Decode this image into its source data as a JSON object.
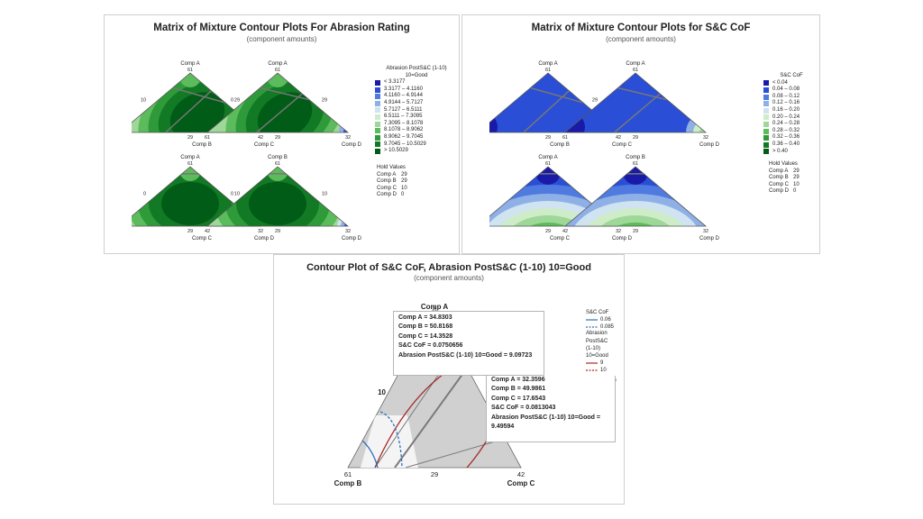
{
  "panel1": {
    "title": "Matrix of Mixture Contour Plots For Abrasion Rating",
    "subtitle": "(component amounts)",
    "legend_title": "Abrasion PostS&C (1-10)",
    "legend_subtitle": "10=Good",
    "legend_items": [
      {
        "range": "<     3.3177",
        "color": "#1a1aa8"
      },
      {
        "range": "3.3177  –   4.1160",
        "color": "#2a4fd6"
      },
      {
        "range": "4.1160  –   4.9144",
        "color": "#4f7be0"
      },
      {
        "range": "4.9144  –   5.7127",
        "color": "#8fb0e6"
      },
      {
        "range": "5.7127  –   6.5111",
        "color": "#cfe3f1"
      },
      {
        "range": "6.5111  –   7.3095",
        "color": "#cfecc9"
      },
      {
        "range": "7.3095  –   8.1078",
        "color": "#9ed898"
      },
      {
        "range": "8.1078  –   8.9062",
        "color": "#5cbb5c"
      },
      {
        "range": "8.9062  –   9.7045",
        "color": "#2f9a3a"
      },
      {
        "range": "9.7045  –  10.5029",
        "color": "#127a24"
      },
      {
        "range": ">   10.5029",
        "color": "#005c17"
      }
    ],
    "hold_title": "Hold Values",
    "hold": [
      {
        "name": "Comp A",
        "value": "29"
      },
      {
        "name": "Comp B",
        "value": "29"
      },
      {
        "name": "Comp C",
        "value": "10"
      },
      {
        "name": "Comp D",
        "value": "0"
      }
    ],
    "plots": [
      {
        "top": "Comp A",
        "top_val": "61",
        "left_val": "10",
        "right_val": "29",
        "bl_val": "61",
        "bm_val": "29",
        "br_val": "42",
        "bl_name": "Comp B",
        "br_name": "Comp C"
      },
      {
        "top": "Comp A",
        "top_val": "61",
        "left_val": "0",
        "right_val": "29",
        "bl_val": "61",
        "bm_val": "29",
        "br_val": "32",
        "bl_name": "Comp B",
        "br_name": "Comp D"
      },
      {
        "top": "Comp A",
        "top_val": "61",
        "left_val": "0",
        "right_val": "10",
        "bl_val": "42",
        "bm_val": "29",
        "br_val": "32",
        "bl_name": "Comp C",
        "br_name": "Comp D"
      },
      {
        "top": "Comp B",
        "top_val": "61",
        "left_val": "0",
        "right_val": "10",
        "bl_val": "42",
        "bm_val": "29",
        "br_val": "32",
        "bl_name": "Comp C",
        "br_name": "Comp D"
      }
    ]
  },
  "panel2": {
    "title": "Matrix of Mixture Contour Plots for S&C CoF",
    "subtitle": "(component amounts)",
    "legend_title": "S&C CoF",
    "legend_items": [
      {
        "range": "<    0.04",
        "color": "#1a1aa8"
      },
      {
        "range": "0.04  –  0.08",
        "color": "#2a4fd6"
      },
      {
        "range": "0.08  –  0.12",
        "color": "#4f7be0"
      },
      {
        "range": "0.12  –  0.16",
        "color": "#8fb0e6"
      },
      {
        "range": "0.16  –  0.20",
        "color": "#cfe3f1"
      },
      {
        "range": "0.20  –  0.24",
        "color": "#cfecc9"
      },
      {
        "range": "0.24  –  0.28",
        "color": "#9ed898"
      },
      {
        "range": "0.28  –  0.32",
        "color": "#5cbb5c"
      },
      {
        "range": "0.32  –  0.36",
        "color": "#2f9a3a"
      },
      {
        "range": "0.36  –  0.40",
        "color": "#127a24"
      },
      {
        "range": ">    0.40",
        "color": "#005c17"
      }
    ],
    "hold_title": "Hold Values",
    "hold": [
      {
        "name": "Comp A",
        "value": "29"
      },
      {
        "name": "Comp B",
        "value": "29"
      },
      {
        "name": "Comp C",
        "value": "10"
      },
      {
        "name": "Comp D",
        "value": "0"
      }
    ],
    "plots": [
      {
        "top": "Comp A",
        "top_val": "61",
        "left_val": "",
        "right_val": "29",
        "bl_val": "61",
        "bm_val": "29",
        "br_val": "42",
        "bl_name": "Comp B",
        "br_name": "Comp C"
      },
      {
        "top": "Comp A",
        "top_val": "61",
        "left_val": "",
        "right_val": "",
        "bl_val": "61",
        "bm_val": "29",
        "br_val": "32",
        "bl_name": "Comp B",
        "br_name": "Comp D"
      },
      {
        "top": "Comp A",
        "top_val": "61",
        "left_val": "",
        "right_val": "",
        "bl_val": "42",
        "bm_val": "29",
        "br_val": "32",
        "bl_name": "Comp C",
        "br_name": "Comp D"
      },
      {
        "top": "Comp B",
        "top_val": "61",
        "left_val": "",
        "right_val": "",
        "bl_val": "42",
        "bm_val": "29",
        "br_val": "32",
        "bl_name": "Comp C",
        "br_name": "Comp D"
      }
    ]
  },
  "panel3": {
    "title": "Contour Plot of S&C CoF, Abrasion PostS&C (1-10) 10=Good",
    "subtitle": "(component amounts)",
    "top_label": "Comp A",
    "top_val": "29",
    "left_val": "10",
    "bl_val": "61",
    "bl_name": "Comp B",
    "bm_val": "29",
    "br_val": "42",
    "br_name": "Comp C",
    "legend": {
      "cof_title": "S&C CoF",
      "cof_items": [
        "0.06",
        "0.085"
      ],
      "abr_title": [
        "Abrasion",
        "PostS&C",
        "(1-10)",
        "10=Good"
      ],
      "abr_items": [
        "9",
        "10"
      ],
      "hold_partial": "Values",
      "hold_partial2": "p D   0"
    },
    "tooltip1": [
      "Comp A = 34.8303",
      "Comp B = 50.8168",
      "Comp C = 14.3528",
      "S&C CoF = 0.0750656",
      "Abrasion PostS&C (1-10) 10=Good = 9.09723"
    ],
    "tooltip2": [
      "Comp A = 32.3596",
      "Comp B = 49.9861",
      "Comp C = 17.6543",
      "S&C CoF = 0.0813043",
      "Abrasion PostS&C (1-10) 10=Good = 9.49594"
    ],
    "colors": {
      "cof": "#2f6fbf",
      "abrasion": "#a52a2a",
      "region": "#d0d0d0"
    }
  },
  "chart_data": [
    {
      "type": "heatmap",
      "title": "Matrix of Mixture Contour Plots For Abrasion Rating",
      "subtitle": "(component amounts)",
      "legend_title": "Abrasion PostS&C (1-10)",
      "levels": [
        3.3177,
        4.116,
        4.9144,
        5.7127,
        6.5111,
        7.3095,
        8.1078,
        8.9062,
        9.7045,
        10.5029
      ],
      "hold_values": {
        "Comp A": 29,
        "Comp B": 29,
        "Comp C": 10,
        "Comp D": 0
      }
    },
    {
      "type": "heatmap",
      "title": "Matrix of Mixture Contour Plots for S&C CoF",
      "subtitle": "(component amounts)",
      "legend_title": "S&C CoF",
      "levels": [
        0.04,
        0.08,
        0.12,
        0.16,
        0.2,
        0.24,
        0.28,
        0.32,
        0.36,
        0.4
      ],
      "hold_values": {
        "Comp A": 29,
        "Comp B": 29,
        "Comp C": 10,
        "Comp D": 0
      }
    },
    {
      "type": "line",
      "title": "Contour Plot of S&C CoF, Abrasion PostS&C (1-10) 10=Good",
      "subtitle": "(component amounts)",
      "series": [
        {
          "name": "S&C CoF",
          "contours": [
            0.06,
            0.085
          ]
        },
        {
          "name": "Abrasion PostS&C (1-10) 10=Good",
          "contours": [
            9,
            10
          ]
        }
      ],
      "points": [
        {
          "Comp A": 34.8303,
          "Comp B": 50.8168,
          "Comp C": 14.3528,
          "S&C CoF": 0.0750656,
          "Abrasion": 9.09723
        },
        {
          "Comp A": 32.3596,
          "Comp B": 49.9861,
          "Comp C": 17.6543,
          "S&C CoF": 0.0813043,
          "Abrasion": 9.49594
        }
      ]
    }
  ]
}
